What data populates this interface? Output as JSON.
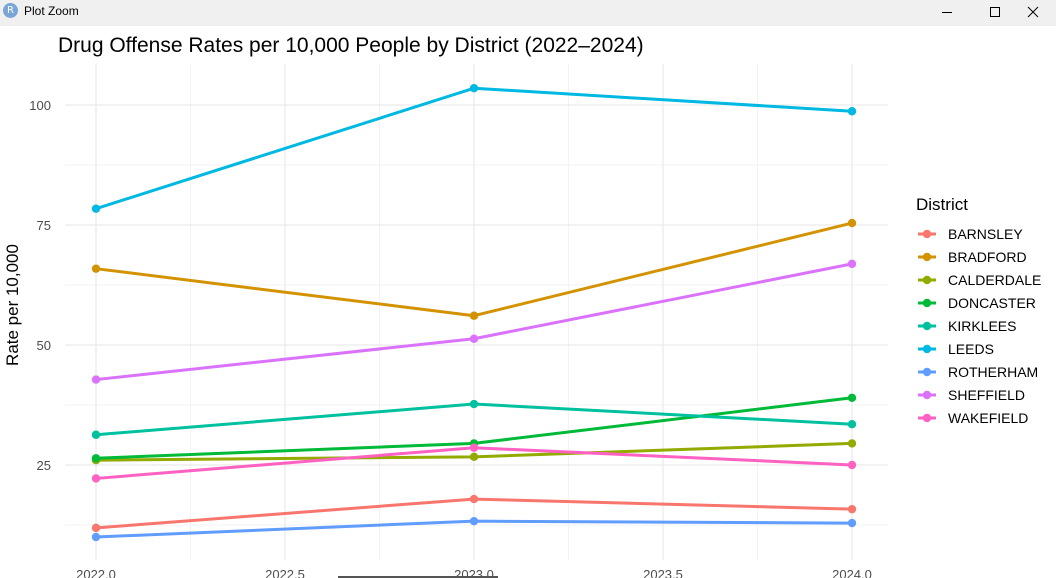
{
  "window": {
    "title": "Plot Zoom",
    "app_icon_letter": "R",
    "minimize_icon": "minimize-icon",
    "maximize_icon": "maximize-icon",
    "close_icon": "close-icon"
  },
  "chart_data": {
    "type": "line",
    "title": "Drug Offense Rates per 10,000 People by District (2022–2024)",
    "xlabel": "",
    "ylabel": "Rate per 10,000",
    "x": [
      2022,
      2023,
      2024
    ],
    "x_ticks": [
      2022.0,
      2022.5,
      2023.0,
      2023.5,
      2024.0
    ],
    "x_tick_labels": [
      "2022.0",
      "2022.5",
      "2023.0",
      "2023.5",
      "2024.0"
    ],
    "y_ticks": [
      25,
      50,
      75,
      100
    ],
    "y_tick_labels": [
      "25",
      "50",
      "75",
      "100"
    ],
    "xlim": [
      2021.93,
      2024.1
    ],
    "ylim": [
      6,
      107
    ],
    "grid": true,
    "legend_title": "District",
    "legend_position": "right",
    "series": [
      {
        "name": "BARNSLEY",
        "color": "#F8766D",
        "values": [
          11.9,
          17.9,
          15.8
        ]
      },
      {
        "name": "BRADFORD",
        "color": "#D39200",
        "values": [
          65.9,
          56.1,
          75.4
        ]
      },
      {
        "name": "CALDERDALE",
        "color": "#93AA00",
        "values": [
          26.0,
          26.7,
          29.5
        ]
      },
      {
        "name": "DONCASTER",
        "color": "#00BA38",
        "values": [
          26.4,
          29.5,
          39.0
        ]
      },
      {
        "name": "KIRKLEES",
        "color": "#00C19F",
        "values": [
          31.3,
          37.7,
          33.5
        ]
      },
      {
        "name": "LEEDS",
        "color": "#00B9E3",
        "values": [
          78.4,
          103.5,
          98.7
        ]
      },
      {
        "name": "ROTHERHAM",
        "color": "#619CFF",
        "values": [
          10.0,
          13.3,
          12.9
        ]
      },
      {
        "name": "SHEFFIELD",
        "color": "#DB72FB",
        "values": [
          42.8,
          51.3,
          66.9
        ]
      },
      {
        "name": "WAKEFIELD",
        "color": "#FF61C3",
        "values": [
          22.2,
          28.6,
          25.0
        ]
      }
    ]
  }
}
